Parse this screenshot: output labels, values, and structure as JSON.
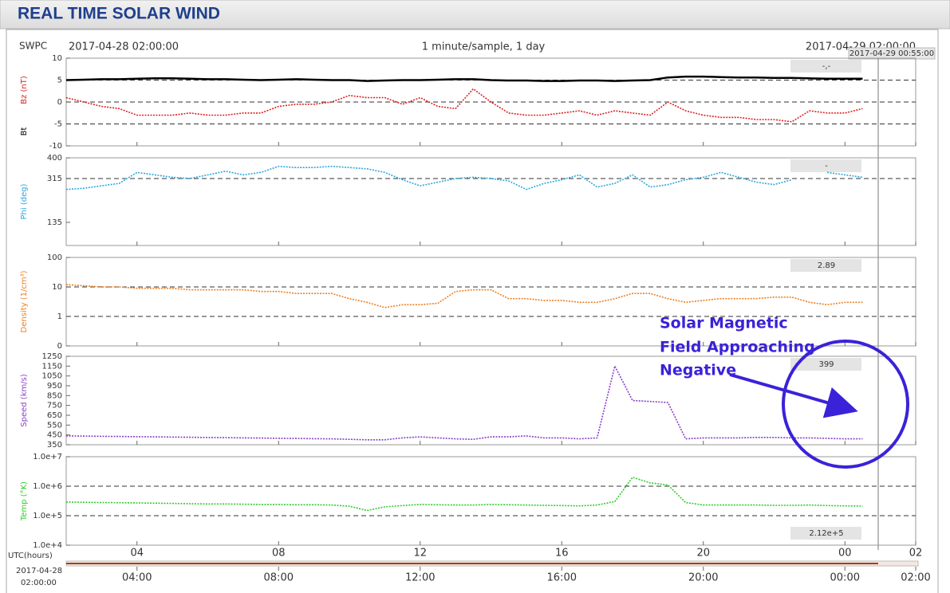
{
  "header": {
    "title": "REAL TIME SOLAR WIND"
  },
  "info": {
    "source": "SWPC",
    "start": "2017-04-28 02:00:00",
    "resolution": "1 minute/sample, 1 day",
    "end": "2017-04-29 02:00:00",
    "cursor": "2017-04-29 00:55:00",
    "axis_label": "UTC(hours)"
  },
  "annotation": {
    "lines": [
      "Solar Magnetic",
      "Field Approaching",
      "Negative"
    ]
  },
  "navigator": {
    "start_label": [
      "2017-04-28",
      "02:00:00"
    ],
    "xlim": [
      2,
      26
    ],
    "xticks": [
      {
        "value": 4,
        "label": "04:00"
      },
      {
        "value": 8,
        "label": "08:00"
      },
      {
        "value": 12,
        "label": "12:00"
      },
      {
        "value": 16,
        "label": "16:00"
      },
      {
        "value": 20,
        "label": "20:00"
      },
      {
        "value": 24,
        "label": "00:00"
      },
      {
        "value": 26,
        "label": "02:00"
      }
    ]
  },
  "chart_data": [
    {
      "type": "line",
      "readout": "-,-",
      "xlim": [
        2,
        26
      ],
      "ylim": [
        -10,
        10
      ],
      "yticks": [
        10,
        5,
        0,
        -5,
        -10
      ],
      "grid": true,
      "x": [
        2,
        2.5,
        3,
        3.5,
        4,
        4.5,
        5,
        5.5,
        6,
        6.5,
        7,
        7.5,
        8,
        8.5,
        9,
        9.5,
        10,
        10.5,
        11,
        11.5,
        12,
        12.5,
        13,
        13.5,
        14,
        14.5,
        15,
        15.5,
        16,
        16.5,
        17,
        17.5,
        18,
        18.5,
        19,
        19.5,
        20,
        20.5,
        21,
        21.5,
        22,
        22.5,
        23,
        23.5,
        24,
        24.5
      ],
      "series": [
        {
          "name": "Bz (nT)",
          "color": "#dd2222",
          "values": [
            1,
            0,
            -1,
            -1.5,
            -3,
            -3,
            -3,
            -2.5,
            -3,
            -3,
            -2.5,
            -2.5,
            -1,
            -0.5,
            -0.5,
            0,
            1.5,
            1,
            1,
            -0.5,
            1,
            -1,
            -1.5,
            3,
            0,
            -2.5,
            -3,
            -3,
            -2.5,
            -2,
            -3,
            -2,
            -2.5,
            -3,
            0,
            -2,
            -3,
            -3.5,
            -3.5,
            -4,
            -4,
            -4.5,
            -2,
            -2.5,
            -2.5,
            -1.5
          ]
        },
        {
          "name": "Bt",
          "color": "#000000",
          "values": [
            5,
            5.1,
            5.2,
            5.2,
            5.3,
            5.4,
            5.4,
            5.3,
            5.2,
            5.2,
            5.1,
            5.0,
            5.1,
            5.2,
            5.1,
            5.0,
            5.0,
            4.8,
            4.9,
            5.0,
            5.0,
            5.1,
            5.2,
            5.2,
            5.0,
            4.9,
            4.9,
            4.8,
            4.8,
            4.9,
            4.9,
            4.8,
            4.9,
            5.0,
            5.6,
            5.8,
            5.8,
            5.7,
            5.6,
            5.6,
            5.5,
            5.5,
            5.4,
            5.3,
            5.3,
            5.3
          ]
        }
      ]
    },
    {
      "type": "line",
      "readout": "-",
      "xlim": [
        2,
        26
      ],
      "ylim": [
        40,
        400
      ],
      "yticks": [
        400,
        315,
        135
      ],
      "grid": true,
      "x": [
        2,
        2.5,
        3,
        3.5,
        4,
        4.5,
        5,
        5.5,
        6,
        6.5,
        7,
        7.5,
        8,
        8.5,
        9,
        9.5,
        10,
        10.5,
        11,
        11.5,
        12,
        12.5,
        13,
        13.5,
        14,
        14.5,
        15,
        15.5,
        16,
        16.5,
        17,
        17.5,
        18,
        18.5,
        19,
        19.5,
        20,
        20.5,
        21,
        21.5,
        22,
        22.5,
        23,
        23.5,
        24,
        24.5
      ],
      "series": [
        {
          "name": "Phi (deg)",
          "color": "#2aa8de",
          "values": [
            270,
            275,
            285,
            295,
            340,
            330,
            320,
            315,
            330,
            345,
            330,
            340,
            365,
            360,
            360,
            365,
            360,
            355,
            340,
            310,
            285,
            300,
            315,
            320,
            315,
            305,
            270,
            295,
            310,
            330,
            280,
            295,
            330,
            280,
            290,
            310,
            320,
            340,
            320,
            300,
            290,
            310,
            null,
            340,
            330,
            320
          ]
        }
      ]
    },
    {
      "type": "line",
      "readout": "2.89",
      "log": true,
      "xlim": [
        2,
        26
      ],
      "ylim": [
        0.1,
        100
      ],
      "yticks": [
        100,
        10,
        1,
        {
          "value": 0.1,
          "label": "0"
        }
      ],
      "grid": true,
      "x": [
        2,
        2.5,
        3,
        3.5,
        4,
        4.5,
        5,
        5.5,
        6,
        6.5,
        7,
        7.5,
        8,
        8.5,
        9,
        9.5,
        10,
        10.5,
        11,
        11.5,
        12,
        12.5,
        13,
        13.5,
        14,
        14.5,
        15,
        15.5,
        16,
        16.5,
        17,
        17.5,
        18,
        18.5,
        19,
        19.5,
        20,
        20.5,
        21,
        21.5,
        22,
        22.5,
        23,
        23.5,
        24,
        24.5
      ],
      "series": [
        {
          "name": "Density (1/cm³)",
          "color": "#ee7f22",
          "values": [
            12,
            11,
            10,
            10,
            9,
            9,
            9,
            8,
            8,
            8,
            8,
            7,
            7,
            6,
            6,
            6,
            4,
            3,
            2,
            2.5,
            2.5,
            2.8,
            7,
            8,
            8,
            4,
            4,
            3.5,
            3.5,
            3,
            3,
            4,
            6,
            6,
            4,
            3,
            3.5,
            4,
            4,
            4,
            4.5,
            4.5,
            3,
            2.5,
            3,
            3
          ]
        }
      ]
    },
    {
      "type": "line",
      "readout": "399",
      "xlim": [
        2,
        26
      ],
      "ylim": [
        350,
        1250
      ],
      "yticks": [
        1250,
        1150,
        1050,
        950,
        850,
        750,
        650,
        550,
        450,
        350
      ],
      "grid": false,
      "x": [
        2,
        2.5,
        3,
        3.5,
        4,
        4.5,
        5,
        5.5,
        6,
        6.5,
        7,
        7.5,
        8,
        8.5,
        9,
        9.5,
        10,
        10.5,
        11,
        11.5,
        12,
        12.5,
        13,
        13.5,
        14,
        14.5,
        15,
        15.5,
        16,
        16.5,
        17,
        17.5,
        18,
        18.5,
        19,
        19.5,
        20,
        20.5,
        21,
        21.5,
        22,
        22.5,
        23,
        23.5,
        24,
        24.5
      ],
      "series": [
        {
          "name": "Speed (km/s)",
          "color": "#8a3fc6",
          "values": [
            440,
            438,
            436,
            434,
            432,
            430,
            428,
            426,
            424,
            422,
            420,
            418,
            416,
            414,
            412,
            410,
            405,
            400,
            400,
            420,
            430,
            420,
            410,
            405,
            430,
            430,
            440,
            420,
            420,
            410,
            420,
            1150,
            800,
            790,
            780,
            410,
            420,
            420,
            420,
            425,
            425,
            420,
            420,
            415,
            410,
            410
          ]
        }
      ]
    },
    {
      "type": "line",
      "readout": "2.12e+5",
      "log": true,
      "xlim": [
        2,
        26
      ],
      "ylim": [
        10000,
        10000000
      ],
      "yticks": [
        {
          "value": 10000000,
          "label": "1.0e+7"
        },
        {
          "value": 1000000,
          "label": "1.0e+6"
        },
        {
          "value": 100000,
          "label": "1.0e+5"
        },
        {
          "value": 10000,
          "label": "1.0e+4"
        }
      ],
      "grid": true,
      "xticks": [
        {
          "value": 4,
          "label": "04"
        },
        {
          "value": 8,
          "label": "08"
        },
        12,
        16,
        20,
        {
          "value": 24,
          "label": "00"
        },
        {
          "value": 26,
          "label": "02"
        }
      ],
      "x": [
        2,
        2.5,
        3,
        3.5,
        4,
        4.5,
        5,
        5.5,
        6,
        6.5,
        7,
        7.5,
        8,
        8.5,
        9,
        9.5,
        10,
        10.5,
        11,
        11.5,
        12,
        12.5,
        13,
        13.5,
        14,
        14.5,
        15,
        15.5,
        16,
        16.5,
        17,
        17.5,
        18,
        18.5,
        19,
        19.5,
        20,
        20.5,
        21,
        21.5,
        22,
        22.5,
        23,
        23.5,
        24,
        24.5
      ],
      "series": [
        {
          "name": "Temp (°K)",
          "color": "#2ccc2c",
          "values": [
            290000,
            285000,
            280000,
            275000,
            270000,
            265000,
            260000,
            255000,
            250000,
            250000,
            245000,
            240000,
            240000,
            235000,
            235000,
            230000,
            210000,
            150000,
            200000,
            220000,
            240000,
            235000,
            230000,
            230000,
            240000,
            235000,
            230000,
            225000,
            220000,
            215000,
            230000,
            300000,
            2000000,
            1300000,
            1100000,
            280000,
            230000,
            230000,
            230000,
            230000,
            225000,
            225000,
            230000,
            220000,
            215000,
            212000
          ]
        }
      ]
    }
  ]
}
